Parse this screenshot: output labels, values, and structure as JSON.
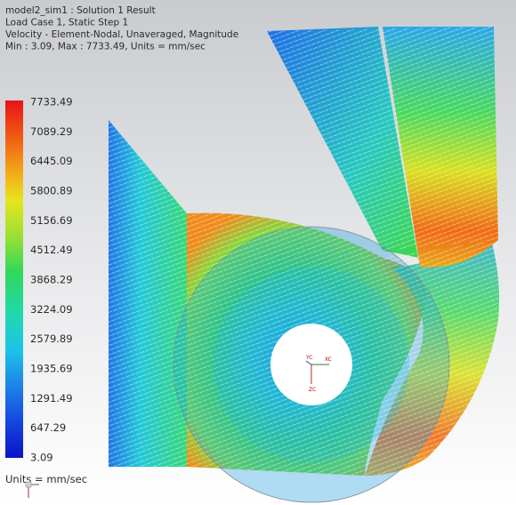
{
  "header": {
    "lines": [
      "model2_sim1 : Solution 1 Result",
      "Load Case 1, Static Step 1",
      "Velocity - Element-Nodal, Unaveraged, Magnitude",
      "Min : 3.09, Max : 7733.49, Units = mm/sec"
    ]
  },
  "legend": {
    "ticks": [
      "7733.49",
      "7089.29",
      "6445.09",
      "5800.89",
      "5156.69",
      "4512.49",
      "3868.29",
      "3224.09",
      "2579.89",
      "1935.69",
      "1291.49",
      "647.29",
      "3.09"
    ]
  },
  "units": "Units = mm/sec",
  "triad": {
    "labels": [
      "XC",
      "YC",
      "ZC"
    ]
  }
}
